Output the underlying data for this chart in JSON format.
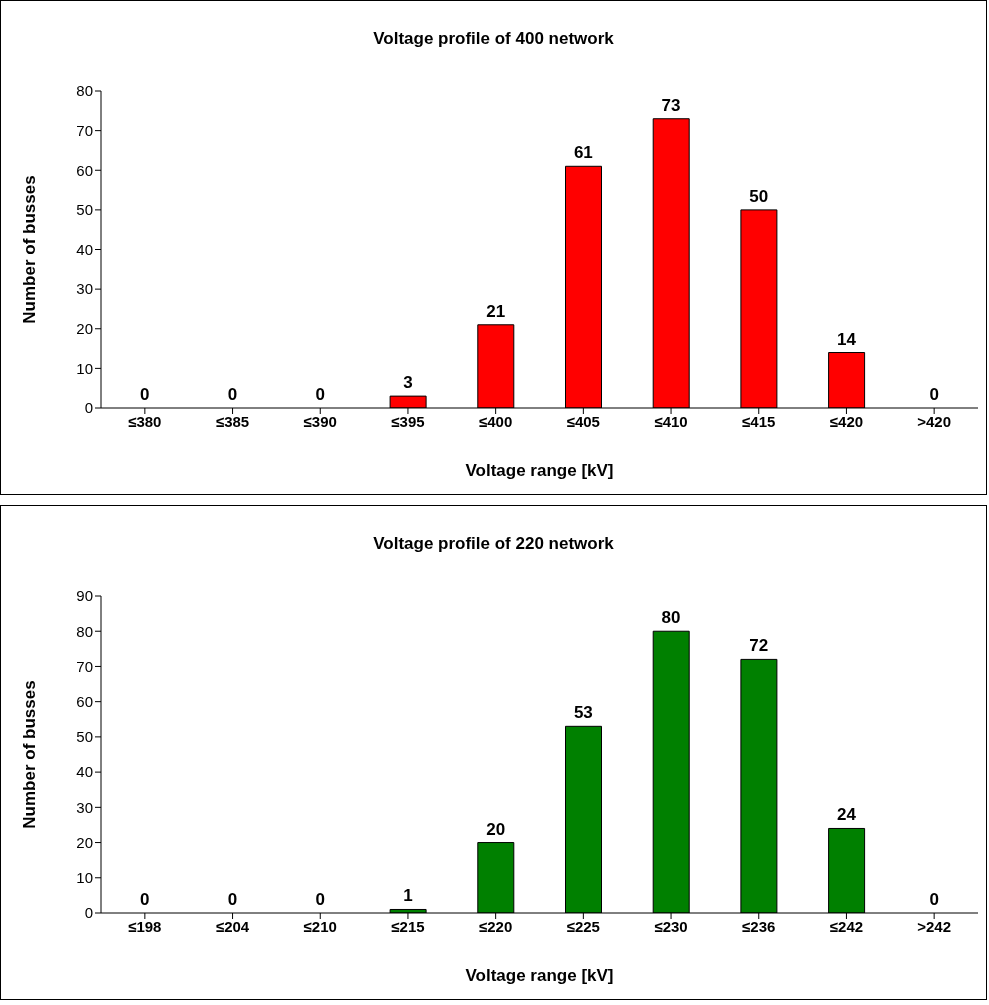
{
  "chart_data": [
    {
      "type": "bar",
      "title": "Voltage profile of 400 network",
      "xlabel": "Voltage range [kV]",
      "ylabel": "Number of busses",
      "categories": [
        "≤380",
        "≤385",
        "≤390",
        "≤395",
        "≤400",
        "≤405",
        "≤410",
        "≤415",
        "≤420",
        ">420"
      ],
      "values": [
        0,
        0,
        0,
        3,
        21,
        61,
        73,
        50,
        14,
        0
      ],
      "color": "#ff0000",
      "ylim": [
        0,
        80
      ],
      "yticks": [
        0,
        10,
        20,
        30,
        40,
        50,
        60,
        70,
        80
      ],
      "data_labels": true
    },
    {
      "type": "bar",
      "title": "Voltage profile of 220 network",
      "xlabel": "Voltage range [kV]",
      "ylabel": "Number of busses",
      "categories": [
        "≤198",
        "≤204",
        "≤210",
        "≤215",
        "≤220",
        "≤225",
        "≤230",
        "≤236",
        "≤242",
        ">242"
      ],
      "values": [
        0,
        0,
        0,
        1,
        20,
        53,
        80,
        72,
        24,
        0
      ],
      "color": "#008000",
      "ylim": [
        0,
        90
      ],
      "yticks": [
        0,
        10,
        20,
        30,
        40,
        50,
        60,
        70,
        80,
        90
      ],
      "data_labels": true
    }
  ]
}
